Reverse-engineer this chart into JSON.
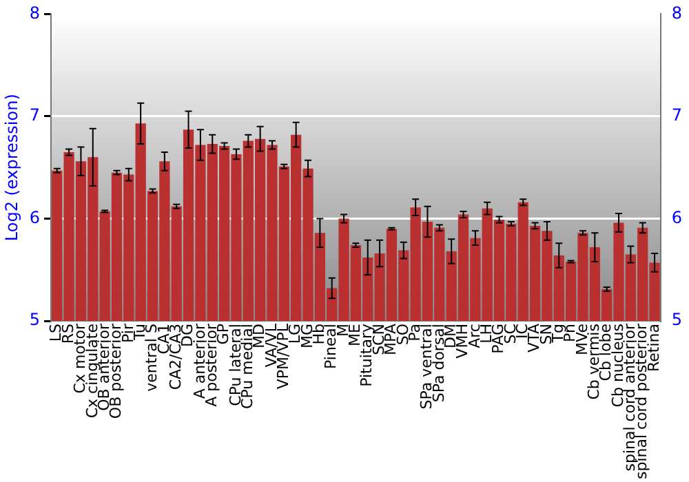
{
  "chart_data": {
    "type": "bar",
    "ylabel": "Log2 (expression)",
    "categories": [
      "LS",
      "RS",
      "Cx motor",
      "Cx cingulate",
      "OB anterior",
      "OB posterior",
      "Pir",
      "Tu",
      "ventral S",
      "CA1",
      "CA2/CA3",
      "DG",
      "A anterior",
      "A posterior",
      "GP",
      "CPu lateral",
      "CPu medial",
      "MD",
      "VA/VL",
      "VPM/VPL",
      "LG",
      "MG",
      "Hb",
      "Pineal",
      "M",
      "ME",
      "Pituitary",
      "SCN",
      "MPA",
      "SO",
      "Pa",
      "SPa ventral",
      "SPa dorsal",
      "DM",
      "VMH",
      "Arc",
      "LH",
      "PAG",
      "SC",
      "IC",
      "VTA",
      "SN",
      "Tg",
      "Pn",
      "MVe",
      "Cb vermis",
      "Cb lobe",
      "Cb nucleus",
      "spinal cord anterior",
      "spinal cord posterior",
      "Retina"
    ],
    "series": [
      {
        "color": "#b83030",
        "values": [
          6.47,
          6.65,
          6.56,
          6.6,
          6.07,
          6.45,
          6.43,
          6.93,
          6.27,
          6.56,
          6.12,
          6.87,
          6.72,
          6.73,
          6.71,
          6.63,
          6.76,
          6.78,
          6.72,
          6.51,
          6.82,
          6.49,
          5.86,
          5.32,
          6.0,
          5.74,
          5.62,
          5.66,
          5.9,
          5.69,
          6.11,
          5.97,
          5.91,
          5.68,
          6.04,
          5.81,
          6.1,
          5.99,
          5.95,
          6.16,
          5.93,
          5.88,
          5.64,
          5.58,
          5.86,
          5.72,
          5.31,
          5.96,
          5.65,
          5.91,
          5.57
        ],
        "errors": [
          0.02,
          0.03,
          0.14,
          0.28,
          0.01,
          0.02,
          0.06,
          0.2,
          0.02,
          0.09,
          0.02,
          0.18,
          0.15,
          0.09,
          0.03,
          0.05,
          0.06,
          0.12,
          0.04,
          0.02,
          0.12,
          0.08,
          0.14,
          0.1,
          0.04,
          0.02,
          0.17,
          0.13,
          0.01,
          0.08,
          0.08,
          0.15,
          0.03,
          0.12,
          0.03,
          0.07,
          0.06,
          0.03,
          0.02,
          0.03,
          0.03,
          0.09,
          0.12,
          0.01,
          0.02,
          0.14,
          0.02,
          0.09,
          0.08,
          0.05,
          0.09
        ]
      }
    ],
    "ylim": [
      5,
      8
    ],
    "yticks": [
      5,
      6,
      7,
      8
    ],
    "y2lim": [
      5,
      8
    ],
    "y2ticks": [
      5,
      6,
      7,
      8
    ],
    "grid": "y",
    "legend": false
  }
}
